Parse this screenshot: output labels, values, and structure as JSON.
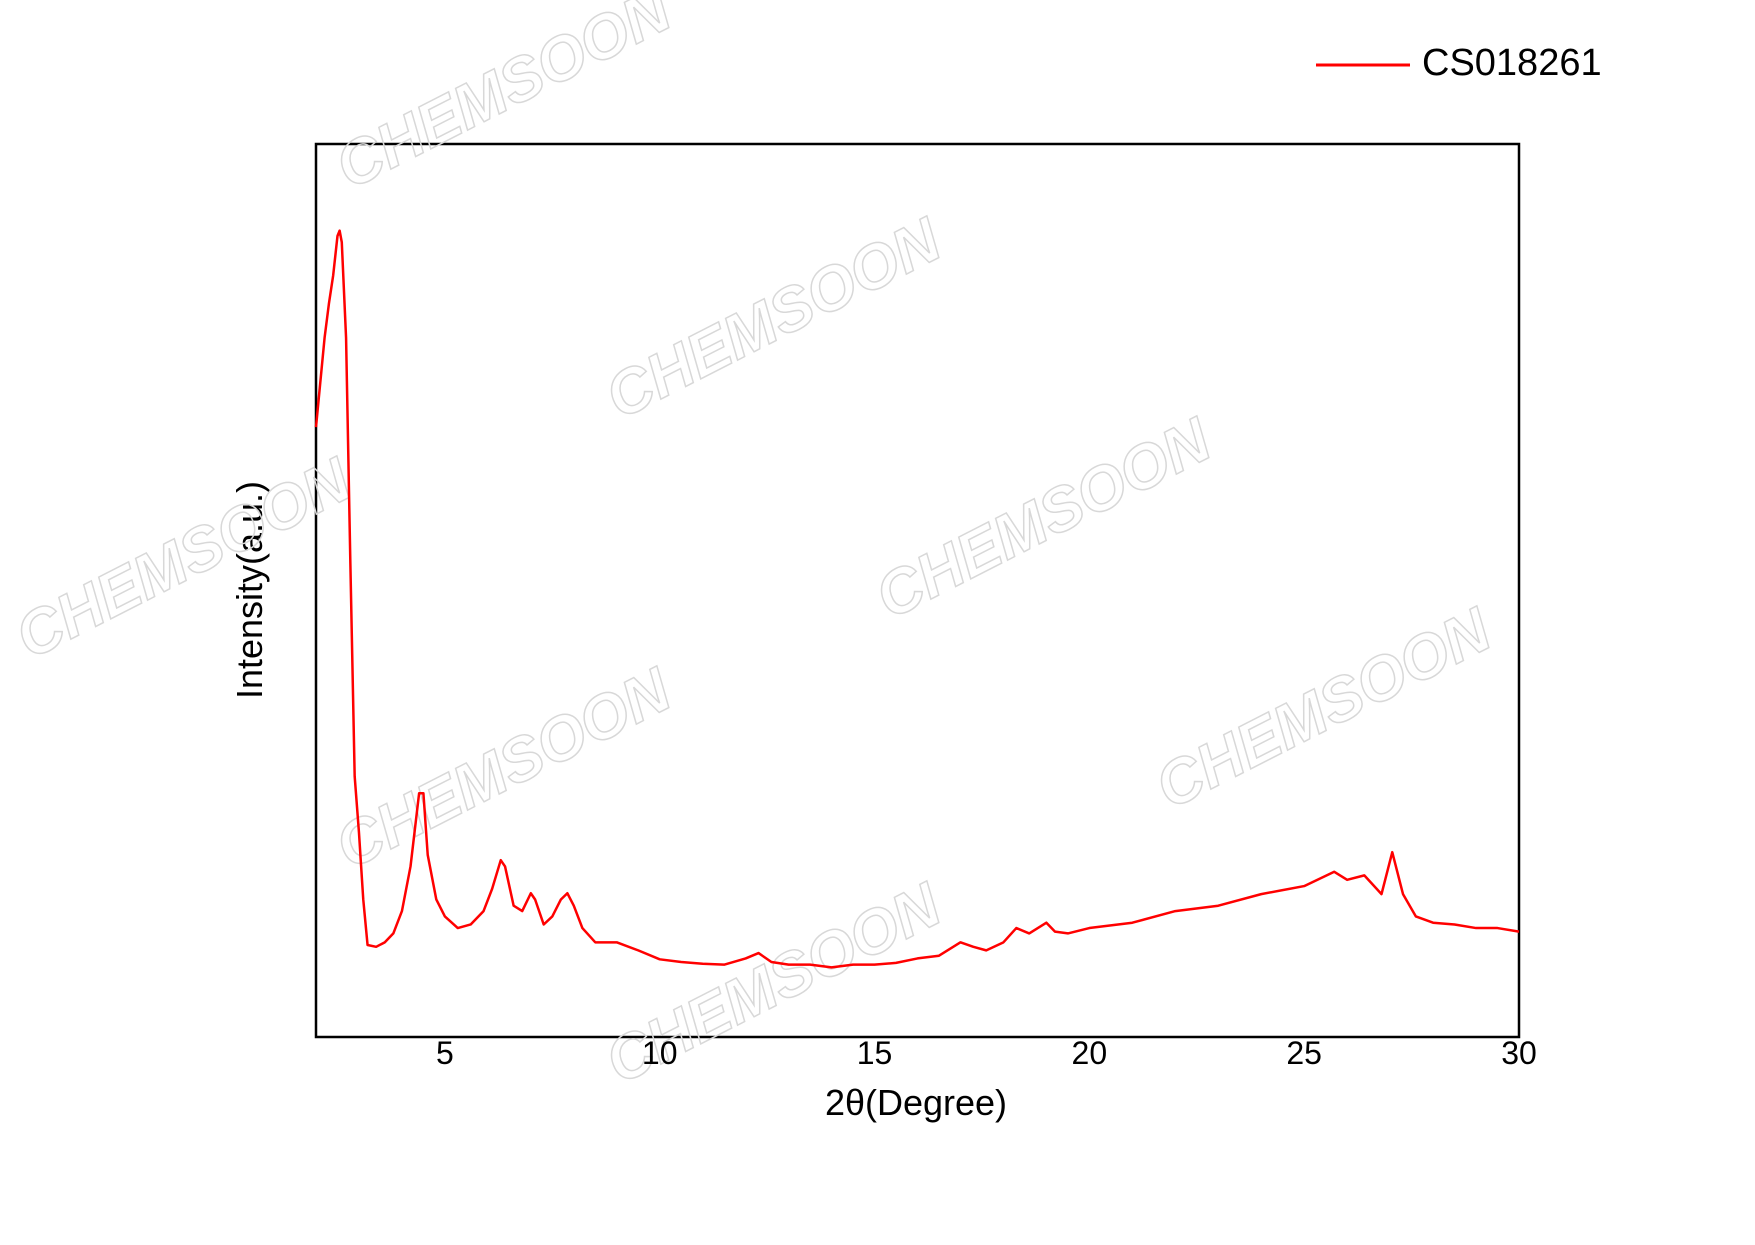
{
  "chart_data": {
    "type": "line",
    "x_label": "2θ(Degree)",
    "y_label": "Intensity(a.u.)",
    "watermark": "CHEMSOON",
    "xlim": [
      2,
      30
    ],
    "xticks": [
      5,
      10,
      15,
      20,
      25,
      30
    ],
    "ylim": [
      0,
      100
    ],
    "legend": "top-right",
    "x": [
      2.0,
      2.1,
      2.2,
      2.3,
      2.4,
      2.5,
      2.55,
      2.6,
      2.7,
      2.8,
      2.9,
      3.0,
      3.1,
      3.2,
      3.4,
      3.6,
      3.8,
      4.0,
      4.2,
      4.4,
      4.5,
      4.6,
      4.8,
      5.0,
      5.3,
      5.6,
      5.9,
      6.1,
      6.3,
      6.4,
      6.6,
      6.8,
      7.0,
      7.1,
      7.3,
      7.5,
      7.7,
      7.85,
      8.0,
      8.2,
      8.5,
      9.0,
      9.5,
      10.0,
      10.5,
      11.0,
      11.5,
      12.0,
      12.3,
      12.6,
      13.0,
      13.5,
      14.0,
      14.5,
      15.0,
      15.5,
      16.0,
      16.5,
      17.0,
      17.3,
      17.6,
      18.0,
      18.3,
      18.6,
      19.0,
      19.2,
      19.5,
      20.0,
      21.0,
      22.0,
      23.0,
      24.0,
      25.0,
      25.7,
      26.0,
      26.4,
      26.8,
      27.05,
      27.3,
      27.6,
      28.0,
      28.5,
      29.0,
      29.5,
      30.0
    ],
    "series": [
      {
        "name": "CS018261",
        "color": "#ff0000",
        "values": [
          68.3,
          73.3,
          78.3,
          82.1,
          85.3,
          89.7,
          90.3,
          89.0,
          78.3,
          53.0,
          29.2,
          22.9,
          15.4,
          10.3,
          10.1,
          10.6,
          11.6,
          14.1,
          19.1,
          27.3,
          27.3,
          20.4,
          15.4,
          13.5,
          12.2,
          12.6,
          14.1,
          16.6,
          19.8,
          19.1,
          14.7,
          14.1,
          16.1,
          15.4,
          12.6,
          13.5,
          15.4,
          16.1,
          14.7,
          12.2,
          10.6,
          10.6,
          9.7,
          8.7,
          8.4,
          8.2,
          8.1,
          8.8,
          9.4,
          8.4,
          8.1,
          8.1,
          7.8,
          8.1,
          8.1,
          8.3,
          8.8,
          9.1,
          10.6,
          10.1,
          9.7,
          10.6,
          12.2,
          11.6,
          12.8,
          11.8,
          11.6,
          12.2,
          12.8,
          14.1,
          14.7,
          16.0,
          16.9,
          18.5,
          17.6,
          18.1,
          16.0,
          20.7,
          16.0,
          13.5,
          12.8,
          12.6,
          12.2,
          12.2,
          11.8
        ]
      }
    ]
  }
}
